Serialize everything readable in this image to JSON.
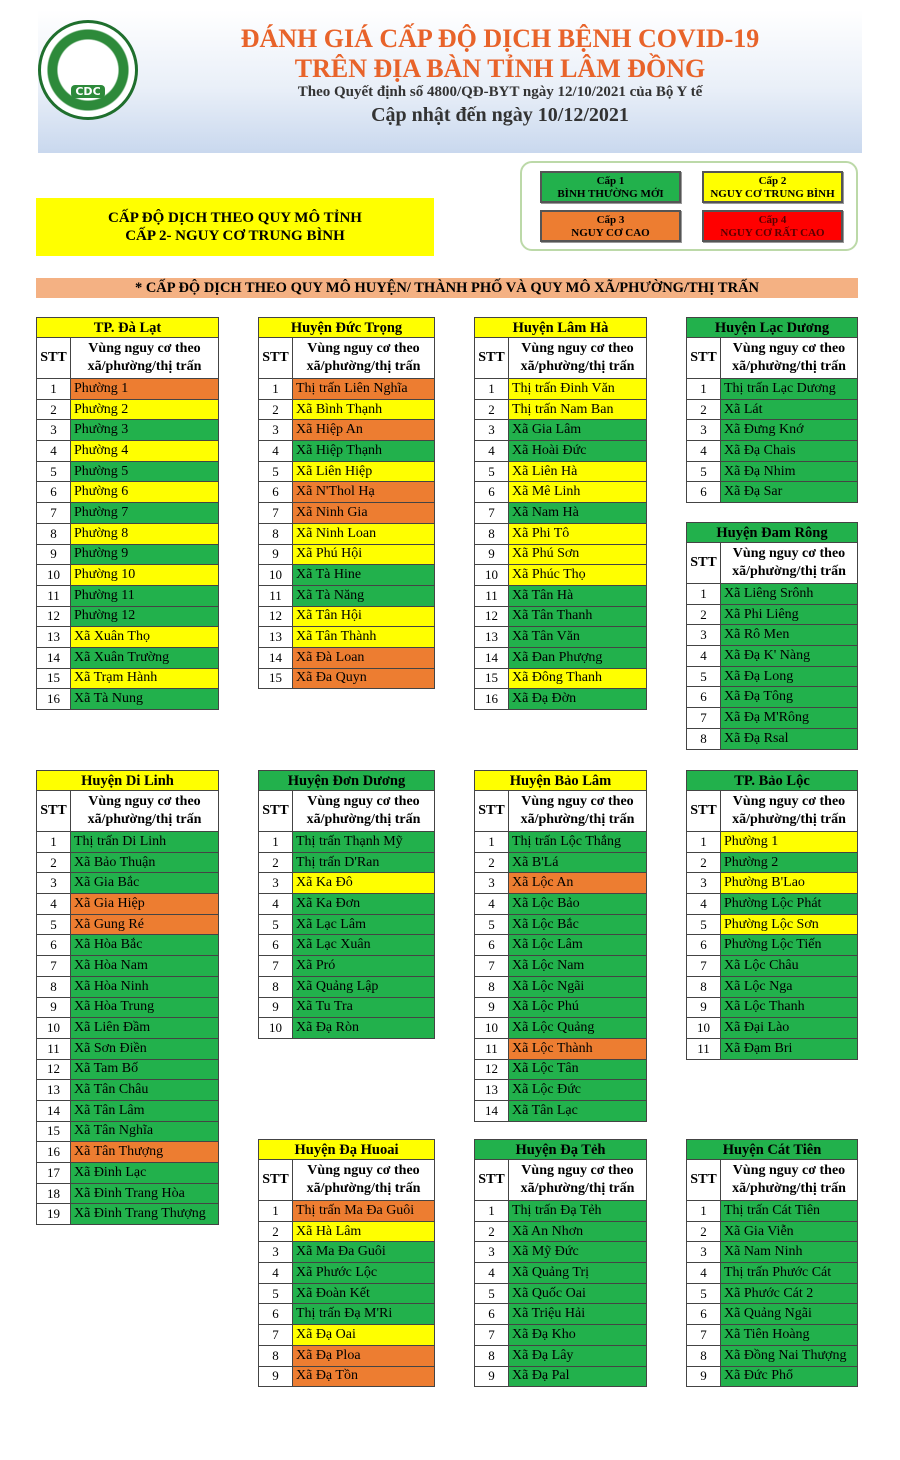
{
  "header": {
    "title": "ĐÁNH GIÁ CẤP ĐỘ DỊCH BỆNH COVID-19",
    "subtitle": "TRÊN ĐỊA BÀN TỈNH LÂM ĐỒNG",
    "decree": "Theo Quyết định số 4800/QĐ-BYT ngày 12/10/2021 của Bộ Y tế",
    "updated": "Cập nhật đến ngày 10/12/2021",
    "logo": "CDC"
  },
  "legend": [
    {
      "level": "Cấp 1",
      "label": "BÌNH THƯỜNG MỚI",
      "color": "#22b14c"
    },
    {
      "level": "Cấp 2",
      "label": "NGUY CƠ TRUNG BÌNH",
      "color": "#ffff00"
    },
    {
      "level": "Cấp 3",
      "label": "NGUY CƠ CAO",
      "color": "#ed7d31"
    },
    {
      "level": "Cấp 4",
      "label": "NGUY CƠ RẤT CAO",
      "color": "#ff0000"
    }
  ],
  "province": {
    "lines": [
      "CẤP ĐỘ DỊCH THEO QUY MÔ TỈNH",
      "CẤP 2- NGUY CƠ TRUNG BÌNH"
    ],
    "color": "#ffff00"
  },
  "section": "* CẤP ĐỘ DỊCH THEO QUY MÔ HUYỆN/ THÀNH PHỐ VÀ QUY MÔ XÃ/PHƯỜNG/THỊ TRẤN",
  "columns": {
    "stt": "STT",
    "area": [
      "Vùng nguy cơ theo",
      "xã/phường/thị trấn"
    ]
  },
  "tables": [
    {
      "title": "TP. Đà Lạt",
      "color": "#ffff00",
      "rows": [
        {
          "no": 1,
          "name": "Phường 1",
          "color": "#ed7d31"
        },
        {
          "no": 2,
          "name": "Phường 2",
          "color": "#ffff00"
        },
        {
          "no": 3,
          "name": "Phường 3",
          "color": "#22b14c"
        },
        {
          "no": 4,
          "name": "Phường 4",
          "color": "#ffff00"
        },
        {
          "no": 5,
          "name": "Phường 5",
          "color": "#22b14c"
        },
        {
          "no": 6,
          "name": "Phường 6",
          "color": "#ffff00"
        },
        {
          "no": 7,
          "name": "Phường 7",
          "color": "#22b14c"
        },
        {
          "no": 8,
          "name": "Phường 8",
          "color": "#ffff00"
        },
        {
          "no": 9,
          "name": "Phường 9",
          "color": "#22b14c"
        },
        {
          "no": 10,
          "name": "Phường 10",
          "color": "#ffff00"
        },
        {
          "no": 11,
          "name": "Phường 11",
          "color": "#22b14c"
        },
        {
          "no": 12,
          "name": "Phường 12",
          "color": "#22b14c"
        },
        {
          "no": 13,
          "name": "Xã Xuân Thọ",
          "color": "#ffff00"
        },
        {
          "no": 14,
          "name": "Xã Xuân Trường",
          "color": "#22b14c"
        },
        {
          "no": 15,
          "name": "Xã Trạm Hành",
          "color": "#ffff00"
        },
        {
          "no": 16,
          "name": "Xã Tà Nung",
          "color": "#22b14c"
        }
      ]
    },
    {
      "title": "Huyện Đức Trọng",
      "color": "#ffff00",
      "rows": [
        {
          "no": 1,
          "name": "Thị trấn Liên Nghĩa",
          "color": "#ed7d31"
        },
        {
          "no": 2,
          "name": "Xã Bình Thạnh",
          "color": "#ffff00"
        },
        {
          "no": 3,
          "name": "Xã Hiệp An",
          "color": "#ed7d31"
        },
        {
          "no": 4,
          "name": "Xã Hiệp Thạnh",
          "color": "#22b14c"
        },
        {
          "no": 5,
          "name": "Xã Liên Hiệp",
          "color": "#ffff00"
        },
        {
          "no": 6,
          "name": "Xã N'Thol Hạ",
          "color": "#ed7d31"
        },
        {
          "no": 7,
          "name": "Xã Ninh Gia",
          "color": "#ed7d31"
        },
        {
          "no": 8,
          "name": "Xã Ninh Loan",
          "color": "#ffff00"
        },
        {
          "no": 9,
          "name": "Xã Phú Hội",
          "color": "#ffff00"
        },
        {
          "no": 10,
          "name": "Xã Tà Hine",
          "color": "#22b14c"
        },
        {
          "no": 11,
          "name": "Xã Tà Năng",
          "color": "#22b14c"
        },
        {
          "no": 12,
          "name": "Xã Tân Hội",
          "color": "#ffff00"
        },
        {
          "no": 13,
          "name": "Xã Tân Thành",
          "color": "#ffff00"
        },
        {
          "no": 14,
          "name": "Xã Đà Loan",
          "color": "#ed7d31"
        },
        {
          "no": 15,
          "name": "Xã Đa Quyn",
          "color": "#ed7d31"
        }
      ]
    },
    {
      "title": "Huyện Lâm Hà",
      "color": "#ffff00",
      "rows": [
        {
          "no": 1,
          "name": "Thị trấn Đinh Văn",
          "color": "#ffff00"
        },
        {
          "no": 2,
          "name": "Thị trấn Nam Ban",
          "color": "#ffff00"
        },
        {
          "no": 3,
          "name": "Xã Gia Lâm",
          "color": "#22b14c"
        },
        {
          "no": 4,
          "name": "Xã Hoài Đức",
          "color": "#22b14c"
        },
        {
          "no": 5,
          "name": "Xã Liên Hà",
          "color": "#ffff00"
        },
        {
          "no": 6,
          "name": "Xã Mê Linh",
          "color": "#ffff00"
        },
        {
          "no": 7,
          "name": "Xã Nam Hà",
          "color": "#22b14c"
        },
        {
          "no": 8,
          "name": "Xã Phi Tô",
          "color": "#ffff00"
        },
        {
          "no": 9,
          "name": "Xã Phú Sơn",
          "color": "#ffff00"
        },
        {
          "no": 10,
          "name": "Xã Phúc Thọ",
          "color": "#ffff00"
        },
        {
          "no": 11,
          "name": "Xã Tân Hà",
          "color": "#22b14c"
        },
        {
          "no": 12,
          "name": "Xã Tân Thanh",
          "color": "#22b14c"
        },
        {
          "no": 13,
          "name": "Xã Tân Văn",
          "color": "#22b14c"
        },
        {
          "no": 14,
          "name": "Xã Đan Phượng",
          "color": "#22b14c"
        },
        {
          "no": 15,
          "name": "Xã Đông Thanh",
          "color": "#ffff00"
        },
        {
          "no": 16,
          "name": "Xã Đạ Đờn",
          "color": "#22b14c"
        }
      ]
    },
    {
      "title": "Huyện Lạc Dương",
      "color": "#22b14c",
      "rows": [
        {
          "no": 1,
          "name": "Thị trấn Lạc Dương",
          "color": "#22b14c"
        },
        {
          "no": 2,
          "name": "Xã Lát",
          "color": "#22b14c"
        },
        {
          "no": 3,
          "name": "Xã Đưng Knớ",
          "color": "#22b14c"
        },
        {
          "no": 4,
          "name": "Xã Đạ Chais",
          "color": "#22b14c"
        },
        {
          "no": 5,
          "name": "Xã Đạ Nhim",
          "color": "#22b14c"
        },
        {
          "no": 6,
          "name": "Xã Đạ Sar",
          "color": "#22b14c"
        }
      ]
    },
    {
      "title": "Huyện Đam Rông",
      "color": "#22b14c",
      "rows": [
        {
          "no": 1,
          "name": "Xã Liêng Srônh",
          "color": "#22b14c"
        },
        {
          "no": 2,
          "name": "Xã Phi Liêng",
          "color": "#22b14c"
        },
        {
          "no": 3,
          "name": "Xã Rô Men",
          "color": "#22b14c"
        },
        {
          "no": 4,
          "name": "Xã Đạ K' Nàng",
          "color": "#22b14c"
        },
        {
          "no": 5,
          "name": "Xã Đạ Long",
          "color": "#22b14c"
        },
        {
          "no": 6,
          "name": "Xã Đạ Tông",
          "color": "#22b14c"
        },
        {
          "no": 7,
          "name": "Xã Đạ M'Rông",
          "color": "#22b14c"
        },
        {
          "no": 8,
          "name": "Xã Đạ Rsal",
          "color": "#22b14c"
        }
      ]
    },
    {
      "title": "Huyện Di Linh",
      "color": "#ffff00",
      "rows": [
        {
          "no": 1,
          "name": "Thị trấn Di Linh",
          "color": "#22b14c"
        },
        {
          "no": 2,
          "name": "Xã Bảo Thuận",
          "color": "#22b14c"
        },
        {
          "no": 3,
          "name": "Xã Gia Bắc",
          "color": "#22b14c"
        },
        {
          "no": 4,
          "name": "Xã Gia Hiệp",
          "color": "#ed7d31"
        },
        {
          "no": 5,
          "name": "Xã Gung Ré",
          "color": "#ed7d31"
        },
        {
          "no": 6,
          "name": "Xã Hòa Bắc",
          "color": "#22b14c"
        },
        {
          "no": 7,
          "name": "Xã Hòa Nam",
          "color": "#22b14c"
        },
        {
          "no": 8,
          "name": "Xã Hòa Ninh",
          "color": "#22b14c"
        },
        {
          "no": 9,
          "name": "Xã Hòa Trung",
          "color": "#22b14c"
        },
        {
          "no": 10,
          "name": "Xã Liên Đầm",
          "color": "#22b14c"
        },
        {
          "no": 11,
          "name": "Xã Sơn Điền",
          "color": "#22b14c"
        },
        {
          "no": 12,
          "name": "Xã Tam Bố",
          "color": "#22b14c"
        },
        {
          "no": 13,
          "name": "Xã Tân Châu",
          "color": "#22b14c"
        },
        {
          "no": 14,
          "name": "Xã Tân Lâm",
          "color": "#22b14c"
        },
        {
          "no": 15,
          "name": "Xã Tân Nghĩa",
          "color": "#22b14c"
        },
        {
          "no": 16,
          "name": "Xã Tân Thượng",
          "color": "#ed7d31"
        },
        {
          "no": 17,
          "name": "Xã Đinh Lạc",
          "color": "#22b14c"
        },
        {
          "no": 18,
          "name": "Xã Đinh Trang Hòa",
          "color": "#22b14c"
        },
        {
          "no": 19,
          "name": "Xã Đinh Trang Thượng",
          "color": "#22b14c"
        }
      ]
    },
    {
      "title": "Huyện Đơn Dương",
      "color": "#22b14c",
      "rows": [
        {
          "no": 1,
          "name": "Thị trấn Thạnh Mỹ",
          "color": "#22b14c"
        },
        {
          "no": 2,
          "name": "Thị trấn D'Ran",
          "color": "#22b14c"
        },
        {
          "no": 3,
          "name": "Xã Ka Đô",
          "color": "#ffff00"
        },
        {
          "no": 4,
          "name": "Xã Ka Đơn",
          "color": "#22b14c"
        },
        {
          "no": 5,
          "name": "Xã Lạc Lâm",
          "color": "#22b14c"
        },
        {
          "no": 6,
          "name": "Xã Lạc Xuân",
          "color": "#22b14c"
        },
        {
          "no": 7,
          "name": "Xã Pró",
          "color": "#22b14c"
        },
        {
          "no": 8,
          "name": "Xã Quảng Lập",
          "color": "#22b14c"
        },
        {
          "no": 9,
          "name": "Xã Tu Tra",
          "color": "#22b14c"
        },
        {
          "no": 10,
          "name": "Xã Đạ Ròn",
          "color": "#22b14c"
        }
      ]
    },
    {
      "title": "Huyện Bảo Lâm",
      "color": "#ffff00",
      "rows": [
        {
          "no": 1,
          "name": "Thị trấn Lộc Thắng",
          "color": "#22b14c"
        },
        {
          "no": 2,
          "name": "Xã B'Lá",
          "color": "#22b14c"
        },
        {
          "no": 3,
          "name": "Xã Lộc An",
          "color": "#ed7d31"
        },
        {
          "no": 4,
          "name": "Xã Lộc Bảo",
          "color": "#22b14c"
        },
        {
          "no": 5,
          "name": "Xã Lộc Bắc",
          "color": "#22b14c"
        },
        {
          "no": 6,
          "name": "Xã Lộc Lâm",
          "color": "#22b14c"
        },
        {
          "no": 7,
          "name": "Xã Lộc Nam",
          "color": "#22b14c"
        },
        {
          "no": 8,
          "name": "Xã Lộc Ngãi",
          "color": "#22b14c"
        },
        {
          "no": 9,
          "name": "Xã Lộc Phú",
          "color": "#22b14c"
        },
        {
          "no": 10,
          "name": "Xã Lộc Quảng",
          "color": "#22b14c"
        },
        {
          "no": 11,
          "name": "Xã Lộc Thành",
          "color": "#ed7d31"
        },
        {
          "no": 12,
          "name": "Xã Lộc Tân",
          "color": "#22b14c"
        },
        {
          "no": 13,
          "name": "Xã Lộc Đức",
          "color": "#22b14c"
        },
        {
          "no": 14,
          "name": "Xã Tân Lạc",
          "color": "#22b14c"
        }
      ]
    },
    {
      "title": "TP. Bảo Lộc",
      "color": "#22b14c",
      "rows": [
        {
          "no": 1,
          "name": "Phường 1",
          "color": "#ffff00"
        },
        {
          "no": 2,
          "name": "Phường 2",
          "color": "#22b14c"
        },
        {
          "no": 3,
          "name": "Phường B'Lao",
          "color": "#ffff00"
        },
        {
          "no": 4,
          "name": "Phường Lộc Phát",
          "color": "#22b14c"
        },
        {
          "no": 5,
          "name": "Phường Lộc Sơn",
          "color": "#ffff00"
        },
        {
          "no": 6,
          "name": "Phường Lộc Tiến",
          "color": "#22b14c"
        },
        {
          "no": 7,
          "name": "Xã Lộc Châu",
          "color": "#22b14c"
        },
        {
          "no": 8,
          "name": "Xã Lộc Nga",
          "color": "#22b14c"
        },
        {
          "no": 9,
          "name": "Xã Lộc Thanh",
          "color": "#22b14c"
        },
        {
          "no": 10,
          "name": "Xã Đại Lào",
          "color": "#22b14c"
        },
        {
          "no": 11,
          "name": "Xã Đạm Bri",
          "color": "#22b14c"
        }
      ]
    },
    {
      "title": "Huyện Đạ Huoai",
      "color": "#ffff00",
      "rows": [
        {
          "no": 1,
          "name": "Thị trấn Ma Đa Guôi",
          "color": "#ed7d31"
        },
        {
          "no": 2,
          "name": "Xã Hà Lâm",
          "color": "#ffff00"
        },
        {
          "no": 3,
          "name": "Xã Ma Đa Guôi",
          "color": "#22b14c"
        },
        {
          "no": 4,
          "name": "Xã Phước Lộc",
          "color": "#22b14c"
        },
        {
          "no": 5,
          "name": "Xã Đoàn Kết",
          "color": "#22b14c"
        },
        {
          "no": 6,
          "name": "Thị trấn Đạ M'Ri",
          "color": "#22b14c"
        },
        {
          "no": 7,
          "name": "Xã Đạ Oai",
          "color": "#ffff00"
        },
        {
          "no": 8,
          "name": "Xã Đạ Ploa",
          "color": "#ed7d31"
        },
        {
          "no": 9,
          "name": "Xã Đạ Tồn",
          "color": "#ed7d31"
        }
      ]
    },
    {
      "title": "Huyện Đạ Tẻh",
      "color": "#22b14c",
      "rows": [
        {
          "no": 1,
          "name": "Thị trấn Đạ Tẻh",
          "color": "#22b14c"
        },
        {
          "no": 2,
          "name": "Xã An Nhơn",
          "color": "#22b14c"
        },
        {
          "no": 3,
          "name": "Xã Mỹ Đức",
          "color": "#22b14c"
        },
        {
          "no": 4,
          "name": "Xã Quảng Trị",
          "color": "#22b14c"
        },
        {
          "no": 5,
          "name": "Xã Quốc Oai",
          "color": "#22b14c"
        },
        {
          "no": 6,
          "name": "Xã Triệu Hải",
          "color": "#22b14c"
        },
        {
          "no": 7,
          "name": "Xã Đạ Kho",
          "color": "#22b14c"
        },
        {
          "no": 8,
          "name": "Xã Đạ Lây",
          "color": "#22b14c"
        },
        {
          "no": 9,
          "name": "Xã Đạ Pal",
          "color": "#22b14c"
        }
      ]
    },
    {
      "title": "Huyện Cát Tiên",
      "color": "#22b14c",
      "rows": [
        {
          "no": 1,
          "name": "Thị trấn Cát Tiên",
          "color": "#22b14c"
        },
        {
          "no": 2,
          "name": "Xã Gia Viễn",
          "color": "#22b14c"
        },
        {
          "no": 3,
          "name": "Xã Nam Ninh",
          "color": "#22b14c"
        },
        {
          "no": 4,
          "name": "Thị trấn Phước Cát",
          "color": "#22b14c"
        },
        {
          "no": 5,
          "name": "Xã Phước Cát 2",
          "color": "#22b14c"
        },
        {
          "no": 6,
          "name": "Xã Quảng Ngãi",
          "color": "#22b14c"
        },
        {
          "no": 7,
          "name": "Xã Tiên Hoàng",
          "color": "#22b14c"
        },
        {
          "no": 8,
          "name": "Xã Đồng Nai Thượng",
          "color": "#22b14c"
        },
        {
          "no": 9,
          "name": "Xã Đức Phổ",
          "color": "#22b14c"
        }
      ]
    }
  ]
}
